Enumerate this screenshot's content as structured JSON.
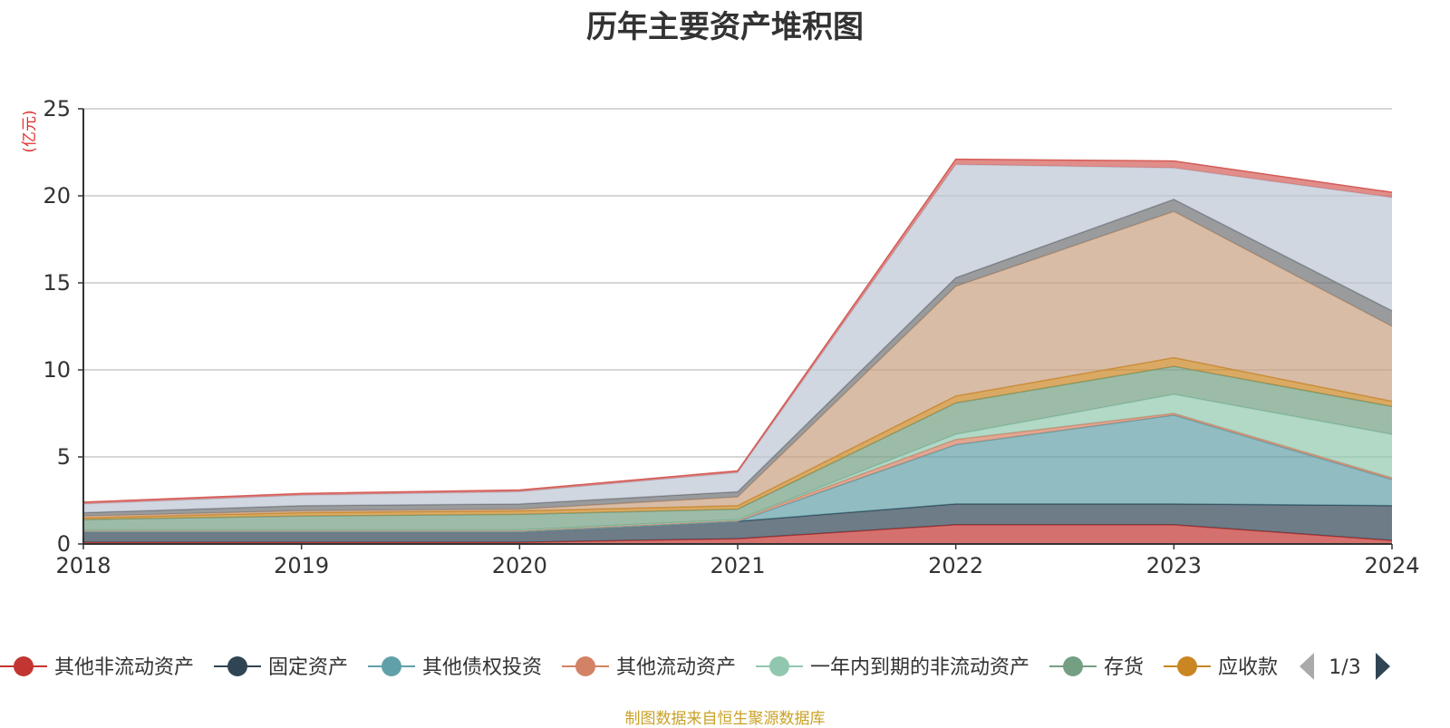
{
  "chart_data": {
    "type": "area",
    "stacked": true,
    "title": "历年主要资产堆积图",
    "ylabel": "(亿元)",
    "ylim": [
      0,
      25
    ],
    "yticks": [
      0,
      5,
      10,
      15,
      20,
      25
    ],
    "grid": true,
    "legend_position": "bottom",
    "x": [
      "2018",
      "2019",
      "2020",
      "2021",
      "2022",
      "2023",
      "2024"
    ],
    "series": [
      {
        "name": "其他非流动资产",
        "color": "#c23531",
        "values": [
          0.1,
          0.1,
          0.1,
          0.3,
          1.1,
          1.1,
          0.2
        ]
      },
      {
        "name": "固定资产",
        "color": "#2f4554",
        "values": [
          0.6,
          0.6,
          0.6,
          1.0,
          1.2,
          1.2,
          2.0
        ]
      },
      {
        "name": "其他债权投资",
        "color": "#61a0a8",
        "values": [
          0.0,
          0.0,
          0.0,
          0.0,
          3.4,
          5.1,
          1.5
        ]
      },
      {
        "name": "其他流动资产",
        "color": "#d48265",
        "values": [
          0.1,
          0.1,
          0.1,
          0.1,
          0.3,
          0.1,
          0.1
        ]
      },
      {
        "name": "一年内到期的非流动资产",
        "color": "#91c7ae",
        "values": [
          0.0,
          0.0,
          0.0,
          0.0,
          0.3,
          1.1,
          2.5
        ]
      },
      {
        "name": "存货",
        "color": "#749f83",
        "values": [
          0.6,
          0.8,
          0.9,
          0.6,
          1.8,
          1.6,
          1.6
        ]
      },
      {
        "name": "应收款",
        "color": "#ca8622",
        "values": [
          0.1,
          0.2,
          0.2,
          0.2,
          0.4,
          0.5,
          0.3
        ]
      },
      {
        "name": "",
        "color": "#c9a07f",
        "values": [
          0.1,
          0.1,
          0.1,
          0.5,
          6.3,
          8.4,
          4.3
        ]
      },
      {
        "name": "",
        "color": "#6e7074",
        "values": [
          0.2,
          0.3,
          0.3,
          0.3,
          0.5,
          0.7,
          0.9
        ]
      },
      {
        "name": "",
        "color": "#bdc6d4",
        "values": [
          0.5,
          0.6,
          0.7,
          1.1,
          6.5,
          1.8,
          6.5
        ]
      },
      {
        "name": "",
        "color": "#d45c57",
        "values": [
          0.1,
          0.1,
          0.1,
          0.1,
          0.3,
          0.4,
          0.3
        ]
      }
    ]
  },
  "legend": {
    "page": "1/3",
    "prev_icon": "triangle-left",
    "next_icon": "triangle-right"
  },
  "source_note": "制图数据来自恒生聚源数据库"
}
